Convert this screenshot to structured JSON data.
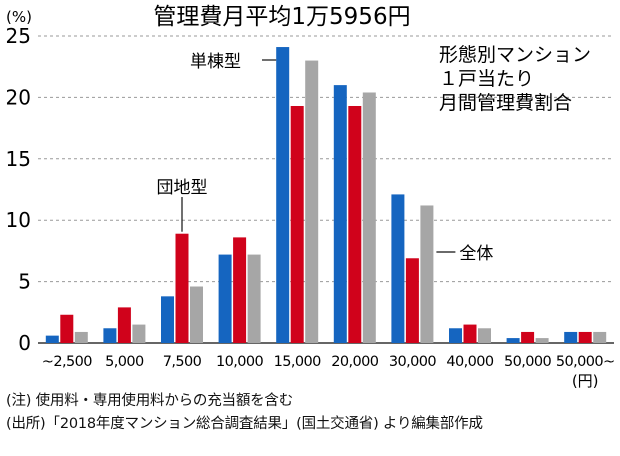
{
  "chart_data": {
    "type": "bar",
    "title": "管理費月平均1万5956円",
    "ylabel": "(%)",
    "x_unit": "(円)",
    "ylim": [
      0,
      25
    ],
    "yticks": [
      0,
      5,
      10,
      15,
      20,
      25
    ],
    "grid": true,
    "categories": [
      "~2,500",
      "5,000",
      "7,500",
      "10,000",
      "15,000",
      "20,000",
      "30,000",
      "40,000",
      "50,000",
      "50,000~"
    ],
    "series": [
      {
        "name": "単棟型",
        "color": "#1565c0",
        "values": [
          0.6,
          1.2,
          3.8,
          7.2,
          24.1,
          21.0,
          12.1,
          1.2,
          0.4,
          0.9
        ]
      },
      {
        "name": "団地型",
        "color": "#d0021b",
        "values": [
          2.3,
          2.9,
          8.9,
          8.6,
          19.3,
          19.3,
          6.9,
          1.5,
          0.9,
          0.9
        ]
      },
      {
        "name": "全体",
        "color": "#a6a6a6",
        "values": [
          0.9,
          1.5,
          4.6,
          7.2,
          23.0,
          20.4,
          11.2,
          1.2,
          0.4,
          0.9
        ]
      }
    ],
    "annotation": [
      "形態別マンション",
      "１戸当たり",
      "月間管理費割合"
    ]
  },
  "notes": {
    "note1": "(注) 使用料・専用使用料からの充当額を含む",
    "note2": "(出所)「2018年度マンション総合調査結果」(国土交通省) より編集部作成"
  }
}
